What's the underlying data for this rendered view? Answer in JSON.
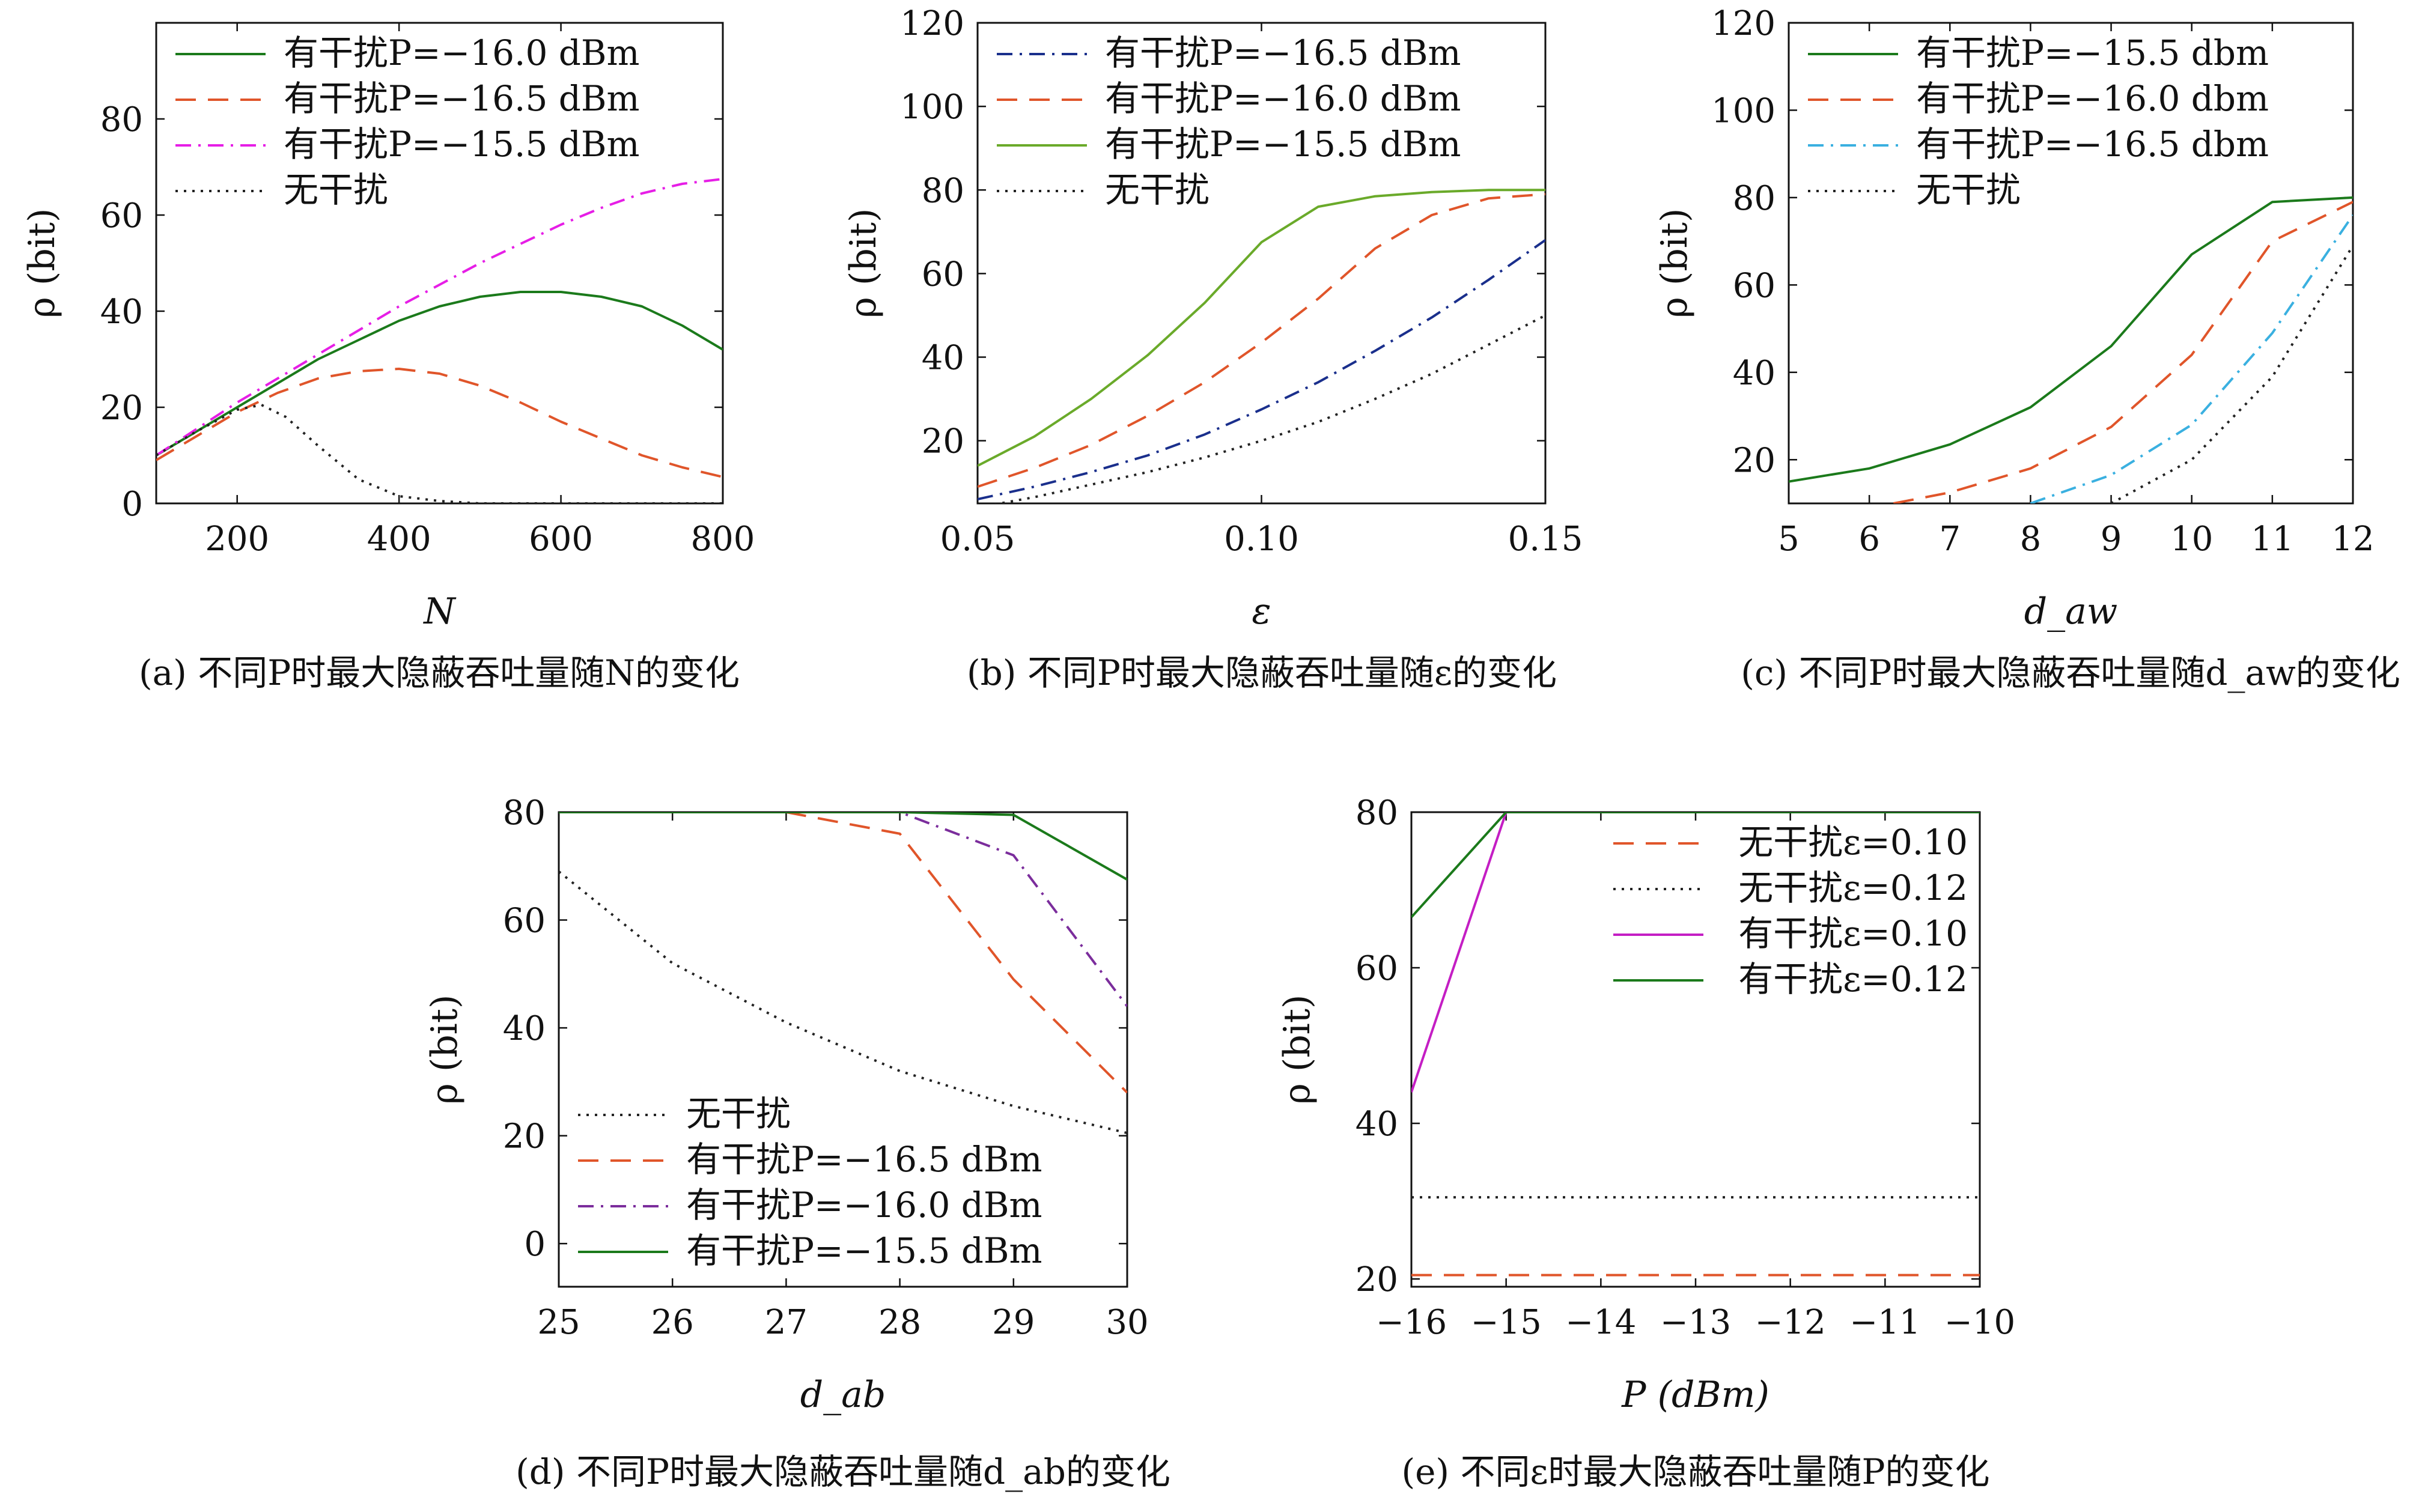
{
  "chart_data": [
    {
      "id": "a",
      "type": "line",
      "caption": "(a) 不同P时最大隐蔽吞吐量随N的变化",
      "xlabel": "N",
      "ylabel": "ρ (bit)",
      "xlim": [
        100,
        800
      ],
      "ylim": [
        0,
        100
      ],
      "xticks": [
        200,
        400,
        600,
        800
      ],
      "yticks": [
        0,
        20,
        40,
        60,
        80
      ],
      "legend_position": "top-left",
      "series": [
        {
          "name": "有干扰P=−16.0 dBm",
          "color": "#1b7a1b",
          "dash": "solid",
          "x": [
            100,
            150,
            200,
            250,
            300,
            350,
            400,
            450,
            500,
            550,
            600,
            650,
            700,
            750,
            800
          ],
          "y": [
            10,
            15,
            20,
            25,
            30,
            34,
            38,
            41,
            43,
            44,
            44,
            43,
            41,
            37,
            32
          ]
        },
        {
          "name": "有干扰P=−16.5 dBm",
          "color": "#e0552a",
          "dash": "dashed",
          "x": [
            100,
            150,
            200,
            250,
            300,
            350,
            400,
            450,
            500,
            550,
            600,
            650,
            700,
            750,
            800
          ],
          "y": [
            9,
            14,
            19,
            23,
            26,
            27.5,
            28,
            27,
            24.5,
            21,
            17,
            13.5,
            10,
            7.5,
            5.5
          ]
        },
        {
          "name": "有干扰P=−15.5 dBm",
          "color": "#e61ee6",
          "dash": "dashdot",
          "x": [
            100,
            150,
            200,
            250,
            300,
            350,
            400,
            450,
            500,
            550,
            600,
            650,
            700,
            750,
            800
          ],
          "y": [
            10,
            15.5,
            21,
            26,
            31,
            36,
            41,
            45.5,
            50,
            54,
            58,
            61.5,
            64.5,
            66.5,
            67.5
          ]
        },
        {
          "name": "无干扰",
          "color": "#222222",
          "dash": "dotted",
          "x": [
            100,
            150,
            200,
            230,
            260,
            300,
            350,
            400,
            450,
            500,
            600,
            700,
            800
          ],
          "y": [
            10,
            15,
            19.5,
            20.5,
            18,
            12,
            5,
            1.5,
            0.5,
            0,
            0,
            0,
            0
          ]
        }
      ]
    },
    {
      "id": "b",
      "type": "line",
      "caption": "(b) 不同P时最大隐蔽吞吐量随ε的变化",
      "xlabel": "ε",
      "ylabel": "ρ (bit)",
      "xlim": [
        0.05,
        0.15
      ],
      "ylim": [
        5,
        120
      ],
      "xticks": [
        0.05,
        0.1,
        0.15
      ],
      "yticks": [
        20,
        40,
        60,
        80,
        100,
        120
      ],
      "legend_position": "top-left",
      "series": [
        {
          "name": "有干扰P=−16.5 dBm",
          "color": "#1a2f8c",
          "dash": "dashdot",
          "x": [
            0.05,
            0.06,
            0.07,
            0.08,
            0.09,
            0.1,
            0.11,
            0.12,
            0.13,
            0.14,
            0.15
          ],
          "y": [
            6,
            9,
            12.5,
            16.5,
            21.5,
            27.5,
            34,
            41.5,
            49.5,
            58.5,
            68
          ]
        },
        {
          "name": "有干扰P=−16.0 dBm",
          "color": "#e0552a",
          "dash": "dashed",
          "x": [
            0.05,
            0.06,
            0.07,
            0.08,
            0.09,
            0.1,
            0.11,
            0.12,
            0.13,
            0.14,
            0.15
          ],
          "y": [
            9,
            13.5,
            19,
            26,
            34,
            43.5,
            54,
            66,
            74,
            78,
            79
          ]
        },
        {
          "name": "有干扰P=−15.5 dBm",
          "color": "#6aaa2a",
          "dash": "solid",
          "x": [
            0.05,
            0.06,
            0.07,
            0.08,
            0.09,
            0.1,
            0.11,
            0.12,
            0.13,
            0.14,
            0.15
          ],
          "y": [
            14,
            21,
            30,
            40.5,
            53,
            67.5,
            76,
            78.5,
            79.5,
            80,
            80
          ]
        },
        {
          "name": "无干扰",
          "color": "#222222",
          "dash": "dotted",
          "x": [
            0.05,
            0.06,
            0.07,
            0.08,
            0.09,
            0.1,
            0.11,
            0.12,
            0.13,
            0.14,
            0.15
          ],
          "y": [
            4,
            6.5,
            9.5,
            12.5,
            16,
            20,
            24.5,
            30,
            36,
            43,
            50
          ]
        }
      ]
    },
    {
      "id": "c",
      "type": "line",
      "caption": "(c) 不同P时最大隐蔽吞吐量随d_aw的变化",
      "xlabel": "d_aw",
      "ylabel": "ρ (bit)",
      "xlim": [
        5,
        12
      ],
      "ylim": [
        10,
        120
      ],
      "xticks": [
        5,
        6,
        7,
        8,
        9,
        10,
        11,
        12
      ],
      "yticks": [
        20,
        40,
        60,
        80,
        100,
        120
      ],
      "legend_position": "top-left",
      "series": [
        {
          "name": "有干扰P=−15.5 dbm",
          "color": "#1b7a1b",
          "dash": "solid",
          "x": [
            5,
            6,
            7,
            8,
            9,
            10,
            11,
            12
          ],
          "y": [
            15,
            18,
            23.5,
            32,
            46,
            67,
            79,
            80
          ]
        },
        {
          "name": "有干扰P=−16.0 dbm",
          "color": "#e0552a",
          "dash": "dashed",
          "x": [
            6.3,
            7,
            8,
            9,
            10,
            11,
            12
          ],
          "y": [
            10,
            12.5,
            18,
            27.5,
            44,
            70,
            79
          ]
        },
        {
          "name": "有干扰P=−16.5 dbm",
          "color": "#3ab0e0",
          "dash": "dashdot",
          "x": [
            8,
            9,
            10,
            11,
            12
          ],
          "y": [
            10,
            16.5,
            28,
            49,
            76
          ]
        },
        {
          "name": "无干扰",
          "color": "#222222",
          "dash": "dotted",
          "x": [
            9,
            10,
            11,
            12
          ],
          "y": [
            10,
            20,
            39,
            69
          ]
        }
      ]
    },
    {
      "id": "d",
      "type": "line",
      "caption": "(d) 不同P时最大隐蔽吞吐量随d_ab的变化",
      "xlabel": "d_ab",
      "ylabel": "ρ (bit)",
      "xlim": [
        25,
        30
      ],
      "ylim": [
        -8,
        80
      ],
      "xticks": [
        25,
        26,
        27,
        28,
        29,
        30
      ],
      "yticks": [
        0,
        20,
        40,
        60,
        80
      ],
      "legend_position": "bottom-left",
      "series": [
        {
          "name": "无干扰",
          "color": "#222222",
          "dash": "dotted",
          "x": [
            25,
            26,
            27,
            28,
            29,
            30
          ],
          "y": [
            69,
            52,
            41,
            32,
            25.5,
            20.5
          ]
        },
        {
          "name": "有干扰P=−16.5 dBm",
          "color": "#e0552a",
          "dash": "dashed",
          "x": [
            25,
            26,
            27,
            28,
            29,
            30
          ],
          "y": [
            80,
            80,
            80,
            76,
            49,
            28
          ]
        },
        {
          "name": "有干扰P=−16.0 dBm",
          "color": "#7b2d9c",
          "dash": "dashdot",
          "x": [
            25,
            26,
            27,
            28,
            29,
            30
          ],
          "y": [
            80,
            80,
            80,
            80,
            72,
            44
          ]
        },
        {
          "name": "有干扰P=−15.5 dBm",
          "color": "#1b7a1b",
          "dash": "solid",
          "x": [
            25,
            26,
            27,
            28,
            29,
            30
          ],
          "y": [
            80,
            80,
            80,
            80,
            79.5,
            67.5
          ]
        }
      ]
    },
    {
      "id": "e",
      "type": "line",
      "caption": "(e) 不同ε时最大隐蔽吞吐量随P的变化",
      "xlabel": "P (dBm)",
      "ylabel": "ρ (bit)",
      "xlim": [
        -16,
        -10
      ],
      "ylim": [
        19,
        80
      ],
      "xticks": [
        -16,
        -15,
        -14,
        -13,
        -12,
        -11,
        -10
      ],
      "yticks": [
        20,
        40,
        60,
        80
      ],
      "legend_position": "top-right",
      "series": [
        {
          "name": "无干扰ε=0.10",
          "color": "#e0552a",
          "dash": "dashed",
          "x": [
            -16,
            -10
          ],
          "y": [
            20.5,
            20.5
          ]
        },
        {
          "name": "无干扰ε=0.12",
          "color": "#222222",
          "dash": "dotted",
          "x": [
            -16,
            -10
          ],
          "y": [
            30.5,
            30.5
          ]
        },
        {
          "name": "有干扰ε=0.10",
          "color": "#c41ec4",
          "dash": "solid",
          "x": [
            -16,
            -15,
            -14,
            -13,
            -12,
            -11,
            -10
          ],
          "y": [
            44,
            80,
            80,
            80,
            80,
            80,
            80
          ]
        },
        {
          "name": "有干扰ε=0.12",
          "color": "#1b7a1b",
          "dash": "solid",
          "x": [
            -16,
            -15,
            -14,
            -13,
            -12,
            -11,
            -10
          ],
          "y": [
            66.5,
            80,
            80,
            80,
            80,
            80,
            80
          ]
        }
      ]
    }
  ]
}
